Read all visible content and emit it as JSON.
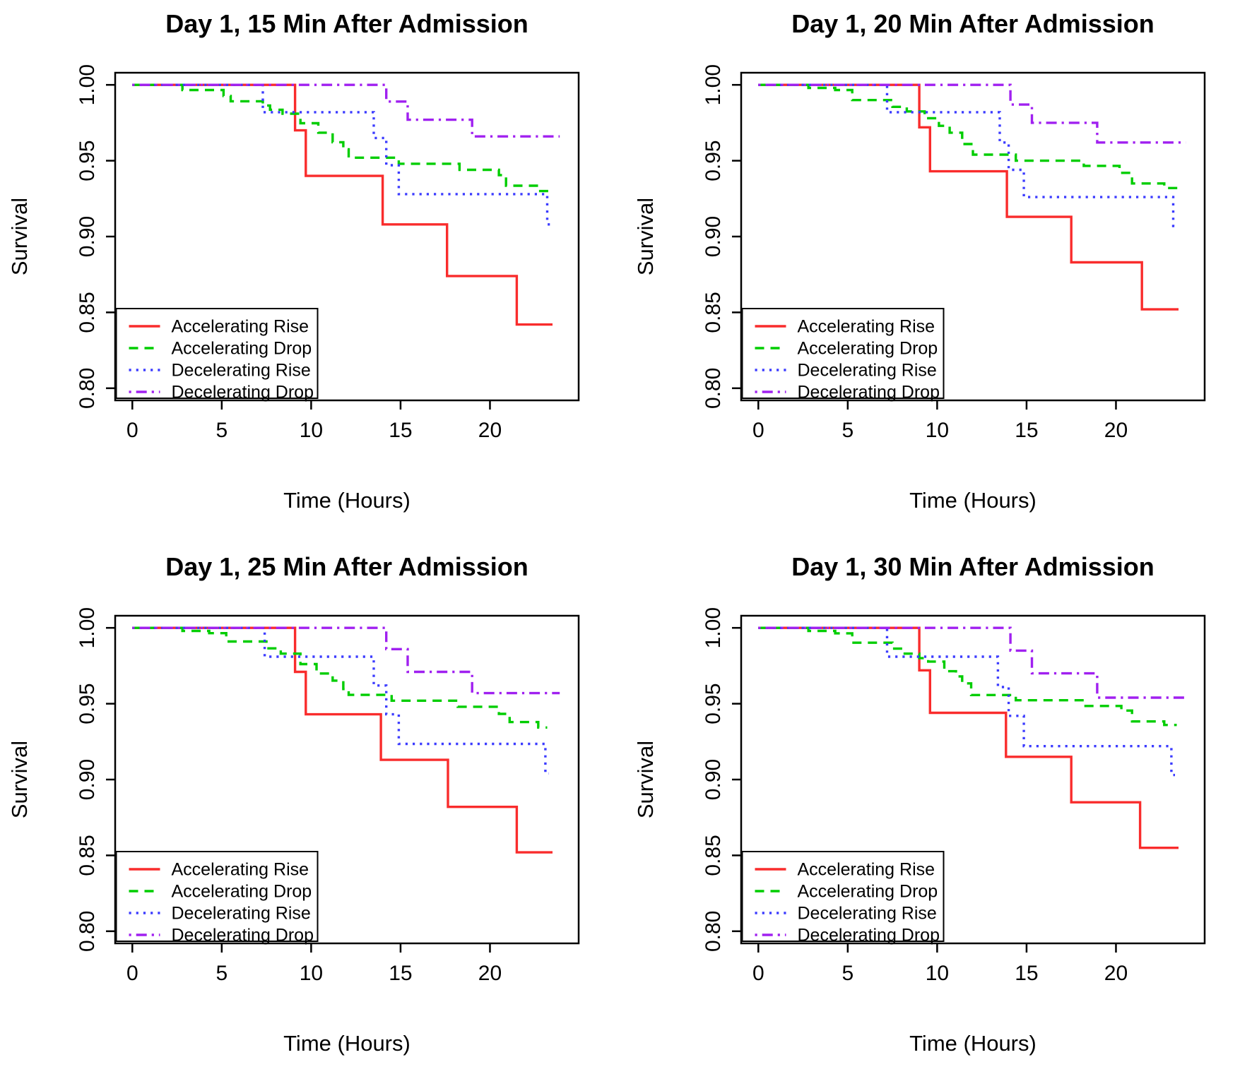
{
  "page": {
    "background": "#ffffff"
  },
  "chart_data": [
    {
      "type": "line",
      "step": true,
      "title": "Day 1, 15 Min After Admission",
      "xlabel": "Time (Hours)",
      "ylabel": "Survival",
      "xlim": [
        -0.96,
        24.96
      ],
      "ylim": [
        0.792,
        1.008
      ],
      "xticks": [
        0,
        5,
        10,
        15,
        20
      ],
      "yticks": [
        1.0,
        0.95,
        0.9,
        0.85,
        0.8
      ],
      "ytick_labels": [
        "1.00",
        "0.95",
        "0.90",
        "0.85",
        "0.80"
      ],
      "grid": false,
      "legend_position": "bottom-left",
      "series": [
        {
          "name": "Accelerating Rise",
          "color": "#f92c2c",
          "linetype": "solid",
          "start": [
            0,
            1.0
          ],
          "steps": [
            [
              9.1,
              0.97
            ],
            [
              9.7,
              0.94
            ],
            [
              14.0,
              0.908
            ],
            [
              17.6,
              0.874
            ],
            [
              21.5,
              0.842
            ]
          ],
          "end_time": 23.5
        },
        {
          "name": "Accelerating Drop",
          "color": "#00cd00",
          "linetype": "dashed",
          "start": [
            0,
            1.0
          ],
          "steps": [
            [
              2.8,
              0.9966
            ],
            [
              5.1,
              0.9927
            ],
            [
              5.5,
              0.9892
            ],
            [
              7.3,
              0.9864
            ],
            [
              7.7,
              0.9836
            ],
            [
              8.4,
              0.981
            ],
            [
              9.4,
              0.9747
            ],
            [
              10.4,
              0.9685
            ],
            [
              11.2,
              0.9622
            ],
            [
              11.8,
              0.9575
            ],
            [
              12.1,
              0.952
            ],
            [
              14.9,
              0.948
            ],
            [
              18.3,
              0.944
            ],
            [
              20.5,
              0.9405
            ],
            [
              20.9,
              0.9335
            ],
            [
              22.7,
              0.93
            ]
          ],
          "end_time": 23.45
        },
        {
          "name": "Decelerating Rise",
          "color": "#3b3bff",
          "linetype": "dotted",
          "start": [
            0,
            1.0
          ],
          "steps": [
            [
              7.3,
              0.982
            ],
            [
              13.5,
              0.965
            ],
            [
              14.2,
              0.947
            ],
            [
              14.9,
              0.928
            ],
            [
              23.2,
              0.908
            ]
          ],
          "end_time": 23.4
        },
        {
          "name": "Decelerating Drop",
          "color": "#a020f0",
          "linetype": "dashdot",
          "start": [
            0,
            1.0
          ],
          "steps": [
            [
              14.2,
              0.989
            ],
            [
              15.4,
              0.977
            ],
            [
              19.0,
              0.966
            ]
          ],
          "end_time": 23.9
        }
      ]
    },
    {
      "type": "line",
      "step": true,
      "title": "Day 1, 20 Min After Admission",
      "xlabel": "Time (Hours)",
      "ylabel": "Survival",
      "xlim": [
        -0.96,
        24.96
      ],
      "ylim": [
        0.792,
        1.008
      ],
      "xticks": [
        0,
        5,
        10,
        15,
        20
      ],
      "yticks": [
        1.0,
        0.95,
        0.9,
        0.85,
        0.8
      ],
      "ytick_labels": [
        "1.00",
        "0.95",
        "0.90",
        "0.85",
        "0.80"
      ],
      "grid": false,
      "legend_position": "bottom-left",
      "series": [
        {
          "name": "Accelerating Rise",
          "color": "#f92c2c",
          "linetype": "solid",
          "start": [
            0,
            1.0
          ],
          "steps": [
            [
              9.0,
              0.972
            ],
            [
              9.6,
              0.943
            ],
            [
              13.9,
              0.913
            ],
            [
              17.5,
              0.883
            ],
            [
              21.45,
              0.852
            ]
          ],
          "end_time": 23.5
        },
        {
          "name": "Accelerating Drop",
          "color": "#00cd00",
          "linetype": "dashed",
          "start": [
            0,
            1.0
          ],
          "steps": [
            [
              2.8,
              0.998
            ],
            [
              4.3,
              0.9966
            ],
            [
              5.25,
              0.99
            ],
            [
              7.5,
              0.9855
            ],
            [
              8.3,
              0.9825
            ],
            [
              9.3,
              0.978
            ],
            [
              10.1,
              0.973
            ],
            [
              10.7,
              0.9685
            ],
            [
              11.4,
              0.961
            ],
            [
              12.0,
              0.954
            ],
            [
              14.4,
              0.95
            ],
            [
              18.2,
              0.9466
            ],
            [
              20.2,
              0.942
            ],
            [
              20.9,
              0.935
            ],
            [
              22.7,
              0.932
            ]
          ],
          "end_time": 23.45
        },
        {
          "name": "Decelerating Rise",
          "color": "#3b3bff",
          "linetype": "dotted",
          "start": [
            0,
            1.0
          ],
          "steps": [
            [
              7.2,
              0.982
            ],
            [
              13.5,
              0.962
            ],
            [
              14.0,
              0.944
            ],
            [
              14.85,
              0.926
            ],
            [
              23.2,
              0.907
            ]
          ],
          "end_time": 23.4
        },
        {
          "name": "Decelerating Drop",
          "color": "#a020f0",
          "linetype": "dashdot",
          "start": [
            0,
            1.0
          ],
          "steps": [
            [
              14.1,
              0.987
            ],
            [
              15.3,
              0.975
            ],
            [
              18.95,
              0.962
            ]
          ],
          "end_time": 23.9
        }
      ]
    },
    {
      "type": "line",
      "step": true,
      "title": "Day 1, 25 Min After Admission",
      "xlabel": "Time (Hours)",
      "ylabel": "Survival",
      "xlim": [
        -0.96,
        24.96
      ],
      "ylim": [
        0.792,
        1.008
      ],
      "xticks": [
        0,
        5,
        10,
        15,
        20
      ],
      "yticks": [
        1.0,
        0.95,
        0.9,
        0.85,
        0.8
      ],
      "ytick_labels": [
        "1.00",
        "0.95",
        "0.90",
        "0.85",
        "0.80"
      ],
      "grid": false,
      "legend_position": "bottom-left",
      "series": [
        {
          "name": "Accelerating Rise",
          "color": "#f92c2c",
          "linetype": "solid",
          "start": [
            0,
            1.0
          ],
          "steps": [
            [
              9.1,
              0.971
            ],
            [
              9.7,
              0.943
            ],
            [
              13.9,
              0.913
            ],
            [
              17.65,
              0.882
            ],
            [
              21.5,
              0.852
            ]
          ],
          "end_time": 23.5
        },
        {
          "name": "Accelerating Drop",
          "color": "#00cd00",
          "linetype": "dashed",
          "start": [
            0,
            1.0
          ],
          "steps": [
            [
              2.8,
              0.998
            ],
            [
              4.3,
              0.9965
            ],
            [
              5.25,
              0.991
            ],
            [
              7.5,
              0.9865
            ],
            [
              8.3,
              0.983
            ],
            [
              9.4,
              0.9761
            ],
            [
              10.3,
              0.9699
            ],
            [
              11.2,
              0.9652
            ],
            [
              11.8,
              0.9597
            ],
            [
              12.1,
              0.9558
            ],
            [
              14.5,
              0.952
            ],
            [
              18.2,
              0.948
            ],
            [
              20.5,
              0.9433
            ],
            [
              21.1,
              0.9379
            ],
            [
              22.7,
              0.9343
            ]
          ],
          "end_time": 23.2
        },
        {
          "name": "Decelerating Rise",
          "color": "#3b3bff",
          "linetype": "dotted",
          "start": [
            0,
            1.0
          ],
          "steps": [
            [
              7.4,
              0.981
            ],
            [
              13.5,
              0.962
            ],
            [
              14.2,
              0.943
            ],
            [
              14.9,
              0.9235
            ],
            [
              23.1,
              0.904
            ]
          ],
          "end_time": 23.3
        },
        {
          "name": "Decelerating Drop",
          "color": "#a020f0",
          "linetype": "dashdot",
          "start": [
            0,
            1.0
          ],
          "steps": [
            [
              14.2,
              0.986
            ],
            [
              15.4,
              0.971
            ],
            [
              19.0,
              0.957
            ]
          ],
          "end_time": 23.9
        }
      ]
    },
    {
      "type": "line",
      "step": true,
      "title": "Day 1, 30 Min After Admission",
      "xlabel": "Time (Hours)",
      "ylabel": "Survival",
      "xlim": [
        -0.96,
        24.96
      ],
      "ylim": [
        0.792,
        1.008
      ],
      "xticks": [
        0,
        5,
        10,
        15,
        20
      ],
      "yticks": [
        1.0,
        0.95,
        0.9,
        0.85,
        0.8
      ],
      "ytick_labels": [
        "1.00",
        "0.95",
        "0.90",
        "0.85",
        "0.80"
      ],
      "grid": false,
      "legend_position": "bottom-left",
      "series": [
        {
          "name": "Accelerating Rise",
          "color": "#f92c2c",
          "linetype": "solid",
          "start": [
            0,
            1.0
          ],
          "steps": [
            [
              9.0,
              0.972
            ],
            [
              9.6,
              0.944
            ],
            [
              13.85,
              0.915
            ],
            [
              17.5,
              0.885
            ],
            [
              21.35,
              0.855
            ]
          ],
          "end_time": 23.5
        },
        {
          "name": "Accelerating Drop",
          "color": "#00cd00",
          "linetype": "dashed",
          "start": [
            0,
            1.0
          ],
          "steps": [
            [
              2.8,
              0.998
            ],
            [
              4.3,
              0.9964
            ],
            [
              5.25,
              0.9902
            ],
            [
              7.5,
              0.9863
            ],
            [
              8.1,
              0.983
            ],
            [
              9.0,
              0.98
            ],
            [
              9.5,
              0.9778
            ],
            [
              10.4,
              0.9714
            ],
            [
              11.05,
              0.968
            ],
            [
              11.4,
              0.9634
            ],
            [
              11.9,
              0.9557
            ],
            [
              14.4,
              0.9523
            ],
            [
              18.2,
              0.9485
            ],
            [
              20.3,
              0.9455
            ],
            [
              20.9,
              0.9383
            ],
            [
              22.7,
              0.936
            ]
          ],
          "end_time": 23.4
        },
        {
          "name": "Decelerating Rise",
          "color": "#3b3bff",
          "linetype": "dotted",
          "start": [
            0,
            1.0
          ],
          "steps": [
            [
              7.2,
              0.981
            ],
            [
              13.4,
              0.961
            ],
            [
              14.0,
              0.942
            ],
            [
              14.85,
              0.922
            ],
            [
              23.1,
              0.903
            ]
          ],
          "end_time": 23.3
        },
        {
          "name": "Decelerating Drop",
          "color": "#a020f0",
          "linetype": "dashdot",
          "start": [
            0,
            1.0
          ],
          "steps": [
            [
              14.1,
              0.985
            ],
            [
              15.3,
              0.97
            ],
            [
              18.95,
              0.954
            ]
          ],
          "end_time": 23.9
        }
      ]
    }
  ],
  "legend": {
    "labels": [
      "Accelerating Rise",
      "Accelerating Drop",
      "Decelerating Rise",
      "Decelerating Drop"
    ]
  },
  "colors": {
    "accelerating_rise": "#f92c2c",
    "accelerating_drop": "#00cd00",
    "decelerating_rise": "#3b3bff",
    "decelerating_drop": "#a020f0",
    "axis": "#000000",
    "text": "#000000"
  }
}
